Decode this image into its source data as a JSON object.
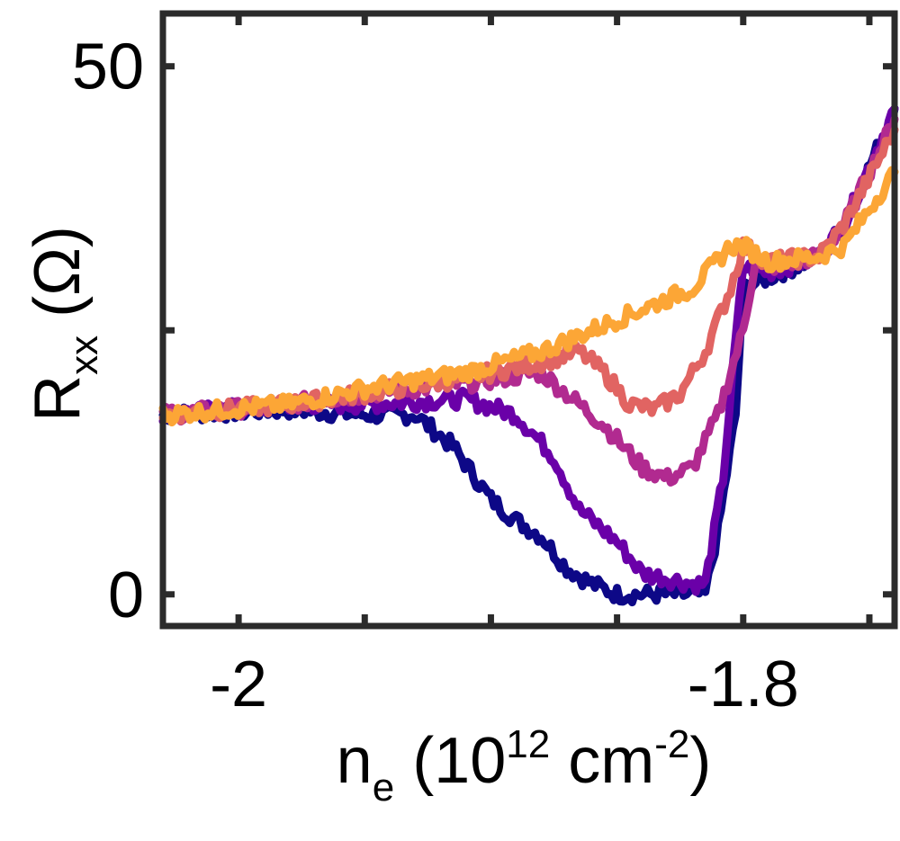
{
  "chart_data": {
    "type": "line",
    "xlabel": {
      "main": "n",
      "sub": "e",
      "rest": " (10",
      "sup1": "12",
      "rest2": " cm",
      "sup2": "-2",
      "end": ")"
    },
    "ylabel": {
      "main": "R",
      "sub": "xx",
      "rest": " (Ω)"
    },
    "xlim": [
      -2.03,
      -1.74
    ],
    "ylim": [
      -3,
      55
    ],
    "x_ticks": [
      -2.0,
      -1.95,
      -1.9,
      -1.85,
      -1.8,
      -1.75
    ],
    "x_tick_labels": [
      {
        "value": -2.0,
        "label": "-2"
      },
      {
        "value": -1.8,
        "label": "-1.8"
      }
    ],
    "y_ticks": [
      0,
      25,
      50
    ],
    "y_tick_labels": [
      {
        "value": 0,
        "label": "0"
      },
      {
        "value": 50,
        "label": "50"
      }
    ],
    "grid": false,
    "series": [
      {
        "color": "#0d0887",
        "points": [
          [
            -2.03,
            17
          ],
          [
            -1.98,
            17.5
          ],
          [
            -1.95,
            17
          ],
          [
            -1.93,
            17
          ],
          [
            -1.915,
            14
          ],
          [
            -1.9,
            9
          ],
          [
            -1.89,
            7
          ],
          [
            -1.88,
            5.5
          ],
          [
            -1.87,
            2.5
          ],
          [
            -1.86,
            1
          ],
          [
            -1.85,
            0
          ],
          [
            -1.82,
            0
          ],
          [
            -1.815,
            0
          ],
          [
            -1.81,
            6
          ],
          [
            -1.803,
            17
          ],
          [
            -1.8,
            29
          ],
          [
            -1.79,
            30
          ],
          [
            -1.77,
            32
          ],
          [
            -1.76,
            35
          ],
          [
            -1.74,
            46
          ]
        ]
      },
      {
        "color": "#6a00a8",
        "points": [
          [
            -2.03,
            17
          ],
          [
            -1.98,
            18
          ],
          [
            -1.95,
            18
          ],
          [
            -1.91,
            18.5
          ],
          [
            -1.89,
            17
          ],
          [
            -1.875,
            13
          ],
          [
            -1.865,
            8
          ],
          [
            -1.85,
            5
          ],
          [
            -1.84,
            2
          ],
          [
            -1.83,
            1.5
          ],
          [
            -1.82,
            1
          ],
          [
            -1.815,
            1
          ],
          [
            -1.808,
            11
          ],
          [
            -1.803,
            24
          ],
          [
            -1.8,
            31
          ],
          [
            -1.79,
            30.5
          ],
          [
            -1.77,
            32
          ],
          [
            -1.76,
            35
          ],
          [
            -1.74,
            46
          ]
        ]
      },
      {
        "color": "#b12a90",
        "points": [
          [
            -2.03,
            17
          ],
          [
            -1.98,
            18
          ],
          [
            -1.95,
            19
          ],
          [
            -1.91,
            20
          ],
          [
            -1.88,
            21
          ],
          [
            -1.87,
            19
          ],
          [
            -1.855,
            16
          ],
          [
            -1.84,
            12
          ],
          [
            -1.83,
            11
          ],
          [
            -1.82,
            12
          ],
          [
            -1.81,
            17
          ],
          [
            -1.8,
            25
          ],
          [
            -1.795,
            32
          ],
          [
            -1.79,
            31
          ],
          [
            -1.77,
            32
          ],
          [
            -1.76,
            35
          ],
          [
            -1.74,
            45
          ]
        ]
      },
      {
        "color": "#e16462",
        "points": [
          [
            -2.03,
            17
          ],
          [
            -1.98,
            18
          ],
          [
            -1.95,
            19
          ],
          [
            -1.91,
            20.5
          ],
          [
            -1.88,
            22
          ],
          [
            -1.865,
            23
          ],
          [
            -1.855,
            21
          ],
          [
            -1.845,
            18
          ],
          [
            -1.835,
            17.5
          ],
          [
            -1.825,
            19
          ],
          [
            -1.815,
            23
          ],
          [
            -1.805,
            29
          ],
          [
            -1.8,
            33
          ],
          [
            -1.79,
            31.5
          ],
          [
            -1.77,
            32
          ],
          [
            -1.76,
            35
          ],
          [
            -1.74,
            44
          ]
        ]
      },
      {
        "color": "#fca636",
        "points": [
          [
            -2.03,
            17
          ],
          [
            -1.98,
            18
          ],
          [
            -1.95,
            19.5
          ],
          [
            -1.91,
            21
          ],
          [
            -1.88,
            23
          ],
          [
            -1.86,
            25
          ],
          [
            -1.84,
            27
          ],
          [
            -1.82,
            29
          ],
          [
            -1.805,
            33
          ],
          [
            -1.8,
            33
          ],
          [
            -1.79,
            31.5
          ],
          [
            -1.77,
            32
          ],
          [
            -1.76,
            33
          ],
          [
            -1.74,
            40
          ]
        ]
      }
    ]
  }
}
